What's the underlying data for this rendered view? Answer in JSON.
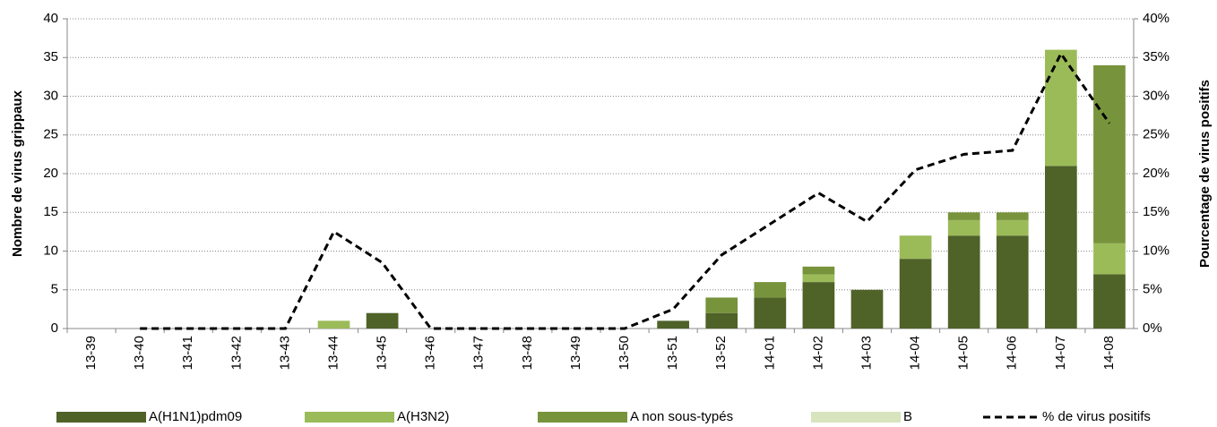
{
  "chart_data": {
    "type": "bar",
    "stacked": true,
    "ylabel": "Nombre de virus grippaux",
    "y2label": "Pourcentage de virus positifs",
    "categories": [
      "13-39",
      "13-40",
      "13-41",
      "13-42",
      "13-43",
      "13-44",
      "13-45",
      "13-46",
      "13-47",
      "13-48",
      "13-49",
      "13-50",
      "13-51",
      "13-52",
      "14-01",
      "14-02",
      "14-03",
      "14-04",
      "14-05",
      "14-06",
      "14-07",
      "14-08"
    ],
    "series": [
      {
        "name": "A(H1N1)pdm09",
        "color": "#4f6228",
        "values": [
          0,
          0,
          0,
          0,
          0,
          0,
          2,
          0,
          0,
          0,
          0,
          0,
          1,
          2,
          4,
          6,
          5,
          9,
          12,
          12,
          21,
          7
        ]
      },
      {
        "name": "A(H3N2)",
        "color": "#9bbb59",
        "values": [
          0,
          0,
          0,
          0,
          0,
          1,
          0,
          0,
          0,
          0,
          0,
          0,
          0,
          0,
          0,
          1,
          0,
          3,
          2,
          2,
          15,
          4
        ]
      },
      {
        "name": "A non sous-typés",
        "color": "#77933c",
        "values": [
          0,
          0,
          0,
          0,
          0,
          0,
          0,
          0,
          0,
          0,
          0,
          0,
          0,
          2,
          2,
          1,
          0,
          0,
          1,
          1,
          0,
          23
        ]
      },
      {
        "name": "B",
        "color": "#d7e4bd",
        "values": [
          0,
          0,
          0,
          0,
          0,
          0,
          0,
          0,
          0,
          0,
          0,
          0,
          0,
          0,
          0,
          0,
          0,
          0,
          0,
          0,
          0,
          0
        ]
      },
      {
        "name": "% de virus positifs",
        "color": "#000000",
        "axis": "y2",
        "dashed": true,
        "values": [
          null,
          0,
          0,
          0,
          0,
          12.5,
          8.5,
          0,
          0,
          0,
          0,
          0,
          2.5,
          9.5,
          13.5,
          17.5,
          13.8,
          20.5,
          22.5,
          23,
          35.5,
          26.5
        ]
      }
    ],
    "ylim": [
      0,
      40
    ],
    "yticks": [
      0,
      5,
      10,
      15,
      20,
      25,
      30,
      35,
      40
    ],
    "y2lim": [
      0,
      40
    ],
    "y2ticks": [
      {
        "value": 0,
        "label": "0%"
      },
      {
        "value": 5,
        "label": "5%"
      },
      {
        "value": 10,
        "label": "10%"
      },
      {
        "value": 15,
        "label": "15%"
      },
      {
        "value": 20,
        "label": "20%"
      },
      {
        "value": 25,
        "label": "25%"
      },
      {
        "value": 30,
        "label": "30%"
      },
      {
        "value": 35,
        "label": "35%"
      },
      {
        "value": 40,
        "label": "40%"
      }
    ],
    "grid": true,
    "legend": "bottom"
  }
}
